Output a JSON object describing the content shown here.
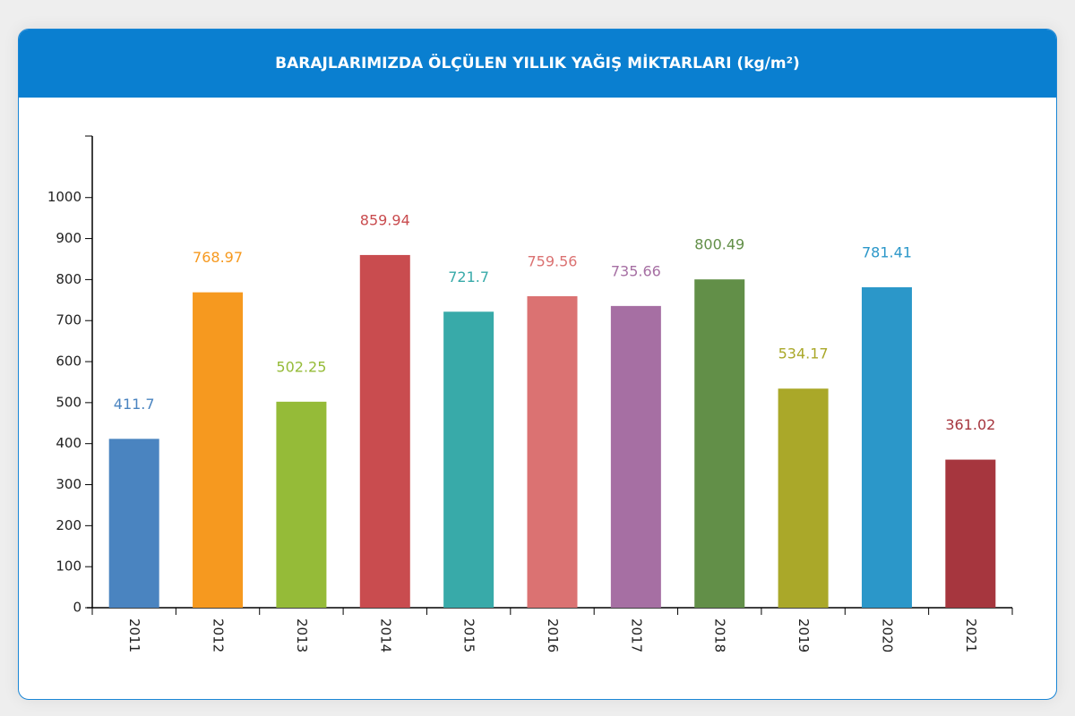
{
  "chart_data": {
    "type": "bar",
    "title": "BARAJLARIMIZDA ÖLÇÜLEN YILLIK YAĞIŞ MİKTARLARI (kg/m²)",
    "categories": [
      "2011",
      "2012",
      "2013",
      "2014",
      "2015",
      "2016",
      "2017",
      "2018",
      "2019",
      "2020",
      "2021"
    ],
    "values": [
      411.7,
      768.97,
      502.25,
      859.94,
      721.7,
      759.56,
      735.66,
      800.49,
      534.17,
      781.41,
      361.02
    ],
    "colors": [
      "#4a84c0",
      "#f6991f",
      "#95bb38",
      "#c94c4f",
      "#38aaa9",
      "#db7272",
      "#a66fa3",
      "#628f48",
      "#aaa829",
      "#2b97c9",
      "#a6363e"
    ],
    "ylim": [
      0,
      1150
    ],
    "yticks": [
      0,
      100,
      200,
      300,
      400,
      500,
      600,
      700,
      800,
      900,
      1000
    ]
  }
}
